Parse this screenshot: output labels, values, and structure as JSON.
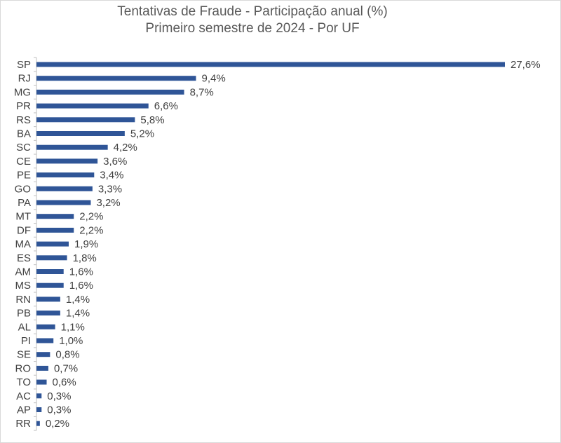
{
  "chart_data": {
    "type": "bar",
    "orientation": "horizontal",
    "title": "Tentativas de Fraude - Participação anual (%)",
    "subtitle": "Primeiro semestre de 2024 - Por UF",
    "categories": [
      "SP",
      "RJ",
      "MG",
      "PR",
      "RS",
      "BA",
      "SC",
      "CE",
      "PE",
      "GO",
      "PA",
      "MT",
      "DF",
      "MA",
      "ES",
      "AM",
      "MS",
      "RN",
      "PB",
      "AL",
      "PI",
      "SE",
      "RO",
      "TO",
      "AC",
      "AP",
      "RR"
    ],
    "values": [
      27.6,
      9.4,
      8.7,
      6.6,
      5.8,
      5.2,
      4.2,
      3.6,
      3.4,
      3.3,
      3.2,
      2.2,
      2.2,
      1.9,
      1.8,
      1.6,
      1.6,
      1.4,
      1.4,
      1.1,
      1.0,
      0.8,
      0.7,
      0.6,
      0.3,
      0.3,
      0.2
    ],
    "value_labels": [
      "27,6%",
      "9,4%",
      "8,7%",
      "6,6%",
      "5,8%",
      "5,2%",
      "4,2%",
      "3,6%",
      "3,4%",
      "3,3%",
      "3,2%",
      "2,2%",
      "2,2%",
      "1,9%",
      "1,8%",
      "1,6%",
      "1,6%",
      "1,4%",
      "1,4%",
      "1,1%",
      "1,0%",
      "0,8%",
      "0,7%",
      "0,6%",
      "0,3%",
      "0,3%",
      "0,2%"
    ],
    "xlabel": "",
    "ylabel": "",
    "xlim": [
      0,
      27.6
    ],
    "grid": false,
    "legend": "none",
    "bar_color": "#2f5597"
  }
}
